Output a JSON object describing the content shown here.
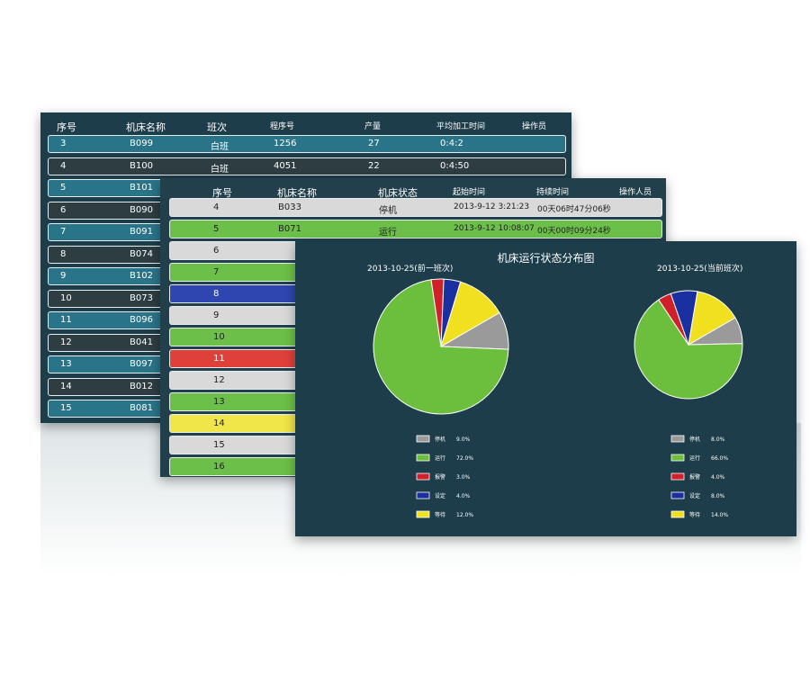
{
  "machine_table": {
    "headers": [
      "序号",
      "机床名称",
      "班次",
      "程序号",
      "产量",
      "平均加工时间",
      "操作员"
    ],
    "rows": [
      [
        "3",
        "B099",
        "白班",
        "1256",
        "27",
        "0:4:2"
      ],
      [
        "4",
        "B100",
        "白班",
        "4051",
        "22",
        "0:4:50"
      ],
      [
        "5",
        "B101"
      ],
      [
        "6",
        "B090"
      ],
      [
        "7",
        "B091"
      ],
      [
        "8",
        "B074"
      ],
      [
        "9",
        "B102"
      ],
      [
        "10",
        "B073"
      ],
      [
        "11",
        "B096"
      ],
      [
        "12",
        "B041"
      ],
      [
        "13",
        "B097"
      ],
      [
        "14",
        "B012"
      ],
      [
        "15",
        "B081"
      ]
    ]
  },
  "status_table": {
    "headers": [
      "序号",
      "机床名称",
      "机床状态",
      "起始时间",
      "持续时间",
      "操作人员"
    ],
    "rows": [
      {
        "cells": [
          "4",
          "B033",
          "停机",
          "2013-9-12 3:21:23",
          "00天06时47分06秒"
        ],
        "color": "#d9d9d9"
      },
      {
        "cells": [
          "5",
          "B071",
          "运行",
          "2013-9-12 10:08:07",
          "00天00时09分24秒"
        ],
        "color": "#6cc04a"
      },
      {
        "cells": [
          "6"
        ],
        "color": "#d9d9d9"
      },
      {
        "cells": [
          "7"
        ],
        "color": "#6cc04a"
      },
      {
        "cells": [
          "8"
        ],
        "color": "#2f45b0"
      },
      {
        "cells": [
          "9"
        ],
        "color": "#d9d9d9"
      },
      {
        "cells": [
          "10"
        ],
        "color": "#6cc04a"
      },
      {
        "cells": [
          "11"
        ],
        "color": "#e0403a"
      },
      {
        "cells": [
          "12"
        ],
        "color": "#d9d9d9"
      },
      {
        "cells": [
          "13"
        ],
        "color": "#6cc04a"
      },
      {
        "cells": [
          "14"
        ],
        "color": "#f0e64a"
      },
      {
        "cells": [
          "15"
        ],
        "color": "#d9d9d9"
      },
      {
        "cells": [
          "16"
        ],
        "color": "#6cc04a"
      }
    ]
  },
  "chart_panel_title": "机床运行状态分布图",
  "chart_data": [
    {
      "type": "pie",
      "title": "2013-10-25(前一班次)",
      "categories": [
        "停机",
        "运行",
        "报警",
        "设定",
        "等待"
      ],
      "values": [
        9,
        72,
        3,
        4,
        12
      ],
      "value_labels": [
        "9.0%",
        "72.0%",
        "3.0%",
        "4.0%",
        "12.0%"
      ],
      "colors": [
        "#9a9a9a",
        "#6cbf3c",
        "#d0202a",
        "#1a2fa0",
        "#f0e020"
      ]
    },
    {
      "type": "pie",
      "title": "2013-10-25(当前班次)",
      "categories": [
        "停机",
        "运行",
        "报警",
        "设定",
        "等待"
      ],
      "values": [
        8,
        66,
        4,
        8,
        14
      ],
      "value_labels": [
        "8.0%",
        "66.0%",
        "4.0%",
        "8.0%",
        "14.0%"
      ],
      "colors": [
        "#9a9a9a",
        "#6cbf3c",
        "#d0202a",
        "#1a2fa0",
        "#f0e020"
      ]
    }
  ]
}
